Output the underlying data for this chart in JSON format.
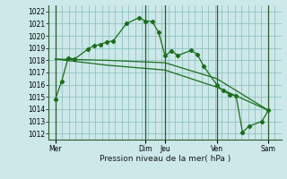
{
  "bg_color": "#cce8e8",
  "grid_color": "#88bbbb",
  "line_color": "#1a6e1a",
  "marker_color": "#1a6e1a",
  "xlabel": "Pression niveau de la mer( hPa )",
  "ylim": [
    1011.5,
    1022.5
  ],
  "yticks": [
    1012,
    1013,
    1014,
    1015,
    1016,
    1017,
    1018,
    1019,
    1020,
    1021,
    1022
  ],
  "day_labels": [
    "Mer",
    "Dim",
    "Jeu",
    "Ven",
    "Sam"
  ],
  "day_positions": [
    0,
    14,
    17,
    25,
    33
  ],
  "xlim": [
    -1,
    35
  ],
  "series1_x": [
    0,
    1,
    2,
    3,
    5,
    6,
    7,
    8,
    9,
    11,
    13,
    14,
    15,
    16,
    17,
    18,
    19,
    21,
    22,
    23,
    25,
    26,
    27,
    28,
    29,
    30,
    32,
    33
  ],
  "series1_y": [
    1014.8,
    1016.3,
    1018.2,
    1018.1,
    1018.9,
    1019.2,
    1019.3,
    1019.5,
    1019.6,
    1021.0,
    1021.5,
    1021.2,
    1021.2,
    1020.3,
    1018.4,
    1018.75,
    1018.4,
    1018.8,
    1018.5,
    1017.5,
    1016.0,
    1015.5,
    1015.2,
    1015.1,
    1012.1,
    1012.6,
    1013.0,
    1013.9
  ],
  "series2_x": [
    0,
    8,
    17,
    25,
    33
  ],
  "series2_y": [
    1018.1,
    1018.0,
    1017.8,
    1016.5,
    1013.9
  ],
  "series3_x": [
    0,
    8,
    17,
    25,
    33
  ],
  "series3_y": [
    1018.1,
    1017.6,
    1017.2,
    1015.8,
    1013.9
  ]
}
